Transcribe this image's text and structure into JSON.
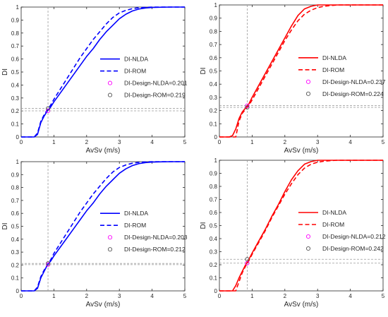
{
  "chart_data": [
    {
      "type": "line",
      "xlabel": "AvSv (m/s)",
      "ylabel": "DI",
      "xlim": [
        0,
        5
      ],
      "ylim": [
        0,
        1
      ],
      "xticks": [
        "0",
        "1",
        "2",
        "3",
        "4",
        "5"
      ],
      "yticks": [
        "0",
        "0.1",
        "0.2",
        "0.3",
        "0.4",
        "0.5",
        "0.6",
        "0.7",
        "0.8",
        "0.9",
        "1"
      ],
      "color": "#0000ff",
      "grid": false,
      "legend_position": "center-right",
      "design_x": 0.82,
      "series": [
        {
          "name": "DI-NLDA",
          "style": "solid",
          "x": [
            0,
            0.4,
            0.5,
            0.6,
            0.7,
            0.8,
            0.9,
            1.0,
            1.2,
            1.4,
            1.6,
            1.8,
            2.0,
            2.2,
            2.4,
            2.6,
            2.8,
            3.0,
            3.2,
            3.4,
            3.6,
            3.8,
            4.0,
            4.3,
            4.6,
            5.0
          ],
          "y": [
            0,
            0,
            0.02,
            0.11,
            0.16,
            0.2,
            0.23,
            0.27,
            0.34,
            0.41,
            0.48,
            0.55,
            0.62,
            0.68,
            0.75,
            0.81,
            0.86,
            0.91,
            0.945,
            0.97,
            0.985,
            0.993,
            0.997,
            0.999,
            1,
            1
          ]
        },
        {
          "name": "DI-ROM",
          "style": "dashed",
          "x": [
            0,
            0.4,
            0.5,
            0.6,
            0.7,
            0.8,
            0.9,
            1.0,
            1.2,
            1.4,
            1.6,
            1.8,
            2.0,
            2.2,
            2.4,
            2.6,
            2.8,
            3.0,
            3.2,
            3.4,
            3.6,
            3.8,
            4.0,
            4.3,
            4.6,
            5.0
          ],
          "y": [
            0,
            0,
            0.03,
            0.12,
            0.17,
            0.21,
            0.245,
            0.29,
            0.37,
            0.45,
            0.53,
            0.61,
            0.68,
            0.75,
            0.81,
            0.87,
            0.92,
            0.955,
            0.975,
            0.988,
            0.995,
            0.998,
            1,
            1,
            1,
            1
          ]
        }
      ],
      "markers": [
        {
          "name": "DI-Design-NLDA=0.201",
          "y": 0.201,
          "color": "#ff00ff"
        },
        {
          "name": "DI-Design-ROM=0.219",
          "y": 0.219,
          "color": "#555555"
        }
      ]
    },
    {
      "type": "line",
      "xlabel": "AvSv (m/s)",
      "ylabel": "DI",
      "xlim": [
        0,
        5
      ],
      "ylim": [
        0,
        1
      ],
      "xticks": [
        "0",
        "1",
        "2",
        "3",
        "4",
        "5"
      ],
      "yticks": [
        "0",
        "0.1",
        "0.2",
        "0.3",
        "0.4",
        "0.5",
        "0.6",
        "0.7",
        "0.8",
        "0.9",
        "1"
      ],
      "color": "#ff0000",
      "grid": false,
      "legend_position": "center-right",
      "design_x": 0.85,
      "series": [
        {
          "name": "DI-NLDA",
          "style": "solid",
          "x": [
            0,
            0.3,
            0.4,
            0.5,
            0.6,
            0.7,
            0.8,
            0.9,
            1.0,
            1.2,
            1.4,
            1.6,
            1.8,
            2.0,
            2.2,
            2.4,
            2.6,
            2.8,
            3.0,
            3.2,
            3.4,
            5.0
          ],
          "y": [
            0,
            0,
            0.01,
            0.06,
            0.14,
            0.19,
            0.22,
            0.25,
            0.3,
            0.39,
            0.48,
            0.57,
            0.66,
            0.75,
            0.84,
            0.92,
            0.97,
            0.99,
            1,
            1,
            1,
            1
          ]
        },
        {
          "name": "DI-ROM",
          "style": "dashed",
          "x": [
            0,
            0.5,
            0.6,
            0.7,
            0.8,
            0.9,
            1.0,
            1.2,
            1.4,
            1.6,
            1.8,
            2.0,
            2.2,
            2.4,
            2.6,
            2.8,
            3.0,
            3.2,
            3.4,
            3.6,
            3.8,
            5.0
          ],
          "y": [
            0,
            0,
            0.12,
            0.18,
            0.21,
            0.24,
            0.28,
            0.37,
            0.46,
            0.55,
            0.64,
            0.73,
            0.81,
            0.88,
            0.93,
            0.96,
            0.98,
            0.99,
            0.995,
            1,
            1,
            1
          ]
        }
      ],
      "markers": [
        {
          "name": "DI-Design-NLDA=0.237",
          "y": 0.237,
          "color": "#ff00ff"
        },
        {
          "name": "DI-Design-ROM=0.224",
          "y": 0.224,
          "color": "#555555"
        }
      ]
    },
    {
      "type": "line",
      "xlabel": "AvSv (m/s)",
      "ylabel": "DI",
      "xlim": [
        0,
        5
      ],
      "ylim": [
        0,
        1
      ],
      "xticks": [
        "0",
        "1",
        "2",
        "3",
        "4",
        "5"
      ],
      "yticks": [
        "0",
        "0.1",
        "0.2",
        "0.3",
        "0.4",
        "0.5",
        "0.6",
        "0.7",
        "0.8",
        "0.9",
        "1"
      ],
      "color": "#0000ff",
      "grid": false,
      "legend_position": "center-right",
      "design_x": 0.82,
      "series": [
        {
          "name": "DI-NLDA",
          "style": "solid",
          "x": [
            0,
            0.4,
            0.5,
            0.6,
            0.7,
            0.8,
            0.9,
            1.0,
            1.2,
            1.4,
            1.6,
            1.8,
            2.0,
            2.2,
            2.4,
            2.6,
            2.8,
            3.0,
            3.2,
            3.4,
            3.6,
            3.8,
            4.0,
            4.3,
            4.6,
            5.0
          ],
          "y": [
            0,
            0,
            0.02,
            0.1,
            0.15,
            0.2,
            0.23,
            0.27,
            0.34,
            0.41,
            0.48,
            0.55,
            0.62,
            0.68,
            0.75,
            0.81,
            0.86,
            0.91,
            0.945,
            0.97,
            0.985,
            0.993,
            0.997,
            0.999,
            1,
            1
          ]
        },
        {
          "name": "DI-ROM",
          "style": "dashed",
          "x": [
            0,
            0.4,
            0.5,
            0.6,
            0.7,
            0.8,
            0.9,
            1.0,
            1.2,
            1.4,
            1.6,
            1.8,
            2.0,
            2.2,
            2.4,
            2.6,
            2.8,
            3.0,
            3.2,
            3.4,
            3.6,
            3.8,
            4.0,
            4.3,
            4.6,
            5.0
          ],
          "y": [
            0,
            0,
            0.03,
            0.11,
            0.16,
            0.2,
            0.24,
            0.29,
            0.37,
            0.45,
            0.53,
            0.61,
            0.68,
            0.75,
            0.81,
            0.87,
            0.92,
            0.955,
            0.975,
            0.988,
            0.995,
            0.998,
            1,
            1,
            1,
            1
          ]
        }
      ],
      "markers": [
        {
          "name": "DI-Design-NLDA=0.203",
          "y": 0.203,
          "color": "#ff00ff"
        },
        {
          "name": "DI-Design-ROM=0.212",
          "y": 0.212,
          "color": "#555555"
        }
      ]
    },
    {
      "type": "line",
      "xlabel": "AvSv (m/s)",
      "ylabel": "DI",
      "xlim": [
        0,
        5
      ],
      "ylim": [
        0,
        1
      ],
      "xticks": [
        "0",
        "1",
        "2",
        "3",
        "4",
        "5"
      ],
      "yticks": [
        "0",
        "0.1",
        "0.2",
        "0.3",
        "0.4",
        "0.5",
        "0.6",
        "0.7",
        "0.8",
        "0.9",
        "1"
      ],
      "color": "#ff0000",
      "grid": false,
      "legend_position": "center-right",
      "design_x": 0.85,
      "series": [
        {
          "name": "DI-NLDA",
          "style": "solid",
          "x": [
            0,
            0.4,
            0.5,
            0.6,
            0.7,
            0.8,
            0.9,
            1.0,
            1.2,
            1.4,
            1.6,
            1.8,
            2.0,
            2.2,
            2.4,
            2.6,
            2.8,
            3.0,
            3.2,
            3.4,
            5.0
          ],
          "y": [
            0,
            0,
            0.04,
            0.1,
            0.15,
            0.2,
            0.24,
            0.29,
            0.38,
            0.47,
            0.57,
            0.66,
            0.76,
            0.85,
            0.92,
            0.97,
            0.99,
            1,
            1,
            1,
            1
          ]
        },
        {
          "name": "DI-ROM",
          "style": "dashed",
          "x": [
            0,
            0.5,
            0.6,
            0.7,
            0.8,
            0.9,
            1.0,
            1.2,
            1.4,
            1.6,
            1.8,
            2.0,
            2.2,
            2.4,
            2.6,
            2.8,
            3.0,
            3.2,
            3.4,
            3.6,
            3.8,
            5.0
          ],
          "y": [
            0,
            0,
            0.07,
            0.14,
            0.19,
            0.23,
            0.28,
            0.37,
            0.46,
            0.56,
            0.65,
            0.74,
            0.82,
            0.89,
            0.94,
            0.97,
            0.985,
            0.993,
            0.997,
            1,
            1,
            1
          ]
        }
      ],
      "markers": [
        {
          "name": "DI-Design-NLDA=0.212",
          "y": 0.212,
          "color": "#ff00ff"
        },
        {
          "name": "DI-Design-ROM=0.242",
          "y": 0.242,
          "color": "#555555"
        }
      ]
    }
  ]
}
